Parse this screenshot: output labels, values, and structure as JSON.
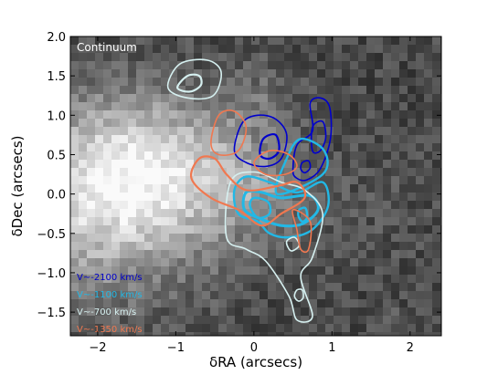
{
  "chart_data": {
    "type": "contour",
    "panel_label": "Continuum",
    "xlabel": "δRA (arcsecs)",
    "ylabel": "δDec (arcsecs)",
    "xlim": [
      -2.35,
      2.4
    ],
    "ylim": [
      -1.8,
      2.0
    ],
    "xticks": [
      -2,
      -1,
      0,
      1,
      2
    ],
    "xtick_labels": [
      "−2",
      "−1",
      "0",
      "1",
      "2"
    ],
    "yticks": [
      -1.5,
      -1.0,
      -0.5,
      0.0,
      0.5,
      1.0,
      1.5,
      2.0
    ],
    "ytick_labels": [
      "−1.5",
      "−1.0",
      "−0.5",
      "0.0",
      "0.5",
      "1.0",
      "1.5",
      "2.0"
    ],
    "background": "grayscale continuum image",
    "series": [
      {
        "name": "V~-2100 km/s",
        "color": "#0000cc",
        "contours": [
          [
            [
              -0.25,
              0.55
            ],
            [
              -0.15,
              0.9
            ],
            [
              0.05,
              1.0
            ],
            [
              0.28,
              0.95
            ],
            [
              0.42,
              0.75
            ],
            [
              0.35,
              0.45
            ],
            [
              0.15,
              0.35
            ],
            [
              -0.1,
              0.4
            ]
          ],
          [
            [
              0.08,
              0.5
            ],
            [
              0.12,
              0.7
            ],
            [
              0.28,
              0.75
            ],
            [
              0.32,
              0.55
            ],
            [
              0.2,
              0.45
            ]
          ],
          [
            [
              0.5,
              0.3
            ],
            [
              0.55,
              0.62
            ],
            [
              0.75,
              0.8
            ],
            [
              0.72,
              1.15
            ],
            [
              0.85,
              1.22
            ],
            [
              0.97,
              1.1
            ],
            [
              0.98,
              0.7
            ],
            [
              0.85,
              0.32
            ],
            [
              0.68,
              0.18
            ],
            [
              0.55,
              0.2
            ]
          ],
          [
            [
              0.75,
              0.55
            ],
            [
              0.75,
              0.85
            ],
            [
              0.88,
              0.92
            ],
            [
              0.92,
              0.72
            ],
            [
              0.85,
              0.55
            ]
          ],
          [
            [
              0.6,
              0.32
            ],
            [
              0.62,
              0.4
            ],
            [
              0.7,
              0.42
            ],
            [
              0.72,
              0.33
            ],
            [
              0.65,
              0.27
            ]
          ]
        ]
      },
      {
        "name": "V~-1100 km/s",
        "color": "#22b8e6",
        "contours": [
          [
            [
              -0.2,
              -0.25
            ],
            [
              -0.25,
              0.05
            ],
            [
              -0.1,
              0.22
            ],
            [
              0.2,
              0.15
            ],
            [
              0.55,
              0.02
            ],
            [
              0.88,
              0.15
            ],
            [
              0.95,
              -0.15
            ],
            [
              0.75,
              -0.45
            ],
            [
              0.45,
              -0.55
            ],
            [
              0.2,
              -0.5
            ],
            [
              0.05,
              -0.35
            ]
          ],
          [
            [
              -0.12,
              -0.2
            ],
            [
              -0.1,
              0.02
            ],
            [
              0.1,
              0.02
            ],
            [
              0.35,
              -0.05
            ],
            [
              0.72,
              -0.02
            ],
            [
              0.82,
              -0.2
            ],
            [
              0.62,
              -0.38
            ],
            [
              0.35,
              -0.4
            ],
            [
              0.1,
              -0.32
            ]
          ],
          [
            [
              -0.05,
              -0.15
            ],
            [
              0.0,
              -0.05
            ],
            [
              0.18,
              -0.1
            ],
            [
              0.2,
              -0.25
            ],
            [
              0.05,
              -0.3
            ]
          ],
          [
            [
              0.57,
              -0.28
            ],
            [
              0.58,
              -0.2
            ],
            [
              0.66,
              -0.18
            ],
            [
              0.68,
              -0.3
            ],
            [
              0.62,
              -0.35
            ]
          ],
          [
            [
              0.3,
              0.0
            ],
            [
              0.42,
              0.45
            ],
            [
              0.6,
              0.7
            ],
            [
              0.9,
              0.55
            ],
            [
              0.88,
              0.25
            ]
          ]
        ]
      },
      {
        "name": "V~-700 km/s",
        "color": "#d6f0f0",
        "contours": [
          [
            [
              -1.1,
              1.35
            ],
            [
              -0.95,
              1.65
            ],
            [
              -0.6,
              1.7
            ],
            [
              -0.42,
              1.55
            ],
            [
              -0.52,
              1.25
            ],
            [
              -0.85,
              1.22
            ]
          ],
          [
            [
              -0.98,
              1.35
            ],
            [
              -0.85,
              1.5
            ],
            [
              -0.7,
              1.5
            ],
            [
              -0.68,
              1.38
            ],
            [
              -0.82,
              1.3
            ]
          ],
          [
            [
              -0.35,
              -0.55
            ],
            [
              -0.3,
              0.15
            ],
            [
              0.0,
              0.28
            ],
            [
              0.35,
              0.15
            ],
            [
              0.65,
              0.05
            ],
            [
              0.88,
              -0.25
            ],
            [
              0.75,
              -0.8
            ],
            [
              0.6,
              -1.05
            ],
            [
              0.75,
              -1.55
            ],
            [
              0.55,
              -1.6
            ],
            [
              0.45,
              -1.3
            ],
            [
              0.15,
              -0.85
            ],
            [
              -0.1,
              -0.7
            ]
          ],
          [
            [
              0.45,
              -0.7
            ],
            [
              0.42,
              -0.6
            ],
            [
              0.52,
              -0.55
            ],
            [
              0.58,
              -0.65
            ],
            [
              0.5,
              -0.72
            ]
          ],
          [
            [
              0.52,
              -1.3
            ],
            [
              0.55,
              -1.22
            ],
            [
              0.62,
              -1.22
            ],
            [
              0.63,
              -1.32
            ],
            [
              0.57,
              -1.36
            ]
          ]
        ]
      },
      {
        "name": "V~-1350 km/s",
        "color": "#f07850",
        "contours": [
          [
            [
              -0.55,
              0.65
            ],
            [
              -0.45,
              1.0
            ],
            [
              -0.25,
              1.05
            ],
            [
              -0.1,
              0.85
            ],
            [
              -0.2,
              0.55
            ],
            [
              -0.45,
              0.5
            ]
          ],
          [
            [
              -0.8,
              0.2
            ],
            [
              -0.7,
              0.45
            ],
            [
              -0.5,
              0.45
            ],
            [
              -0.35,
              0.25
            ],
            [
              -0.1,
              0.05
            ],
            [
              0.3,
              0.1
            ],
            [
              0.55,
              0.15
            ],
            [
              0.65,
              -0.05
            ],
            [
              0.35,
              -0.25
            ],
            [
              0.1,
              -0.4
            ],
            [
              -0.2,
              -0.2
            ],
            [
              -0.55,
              -0.05
            ]
          ],
          [
            [
              0.0,
              0.4
            ],
            [
              0.2,
              0.55
            ],
            [
              0.45,
              0.5
            ],
            [
              0.55,
              0.35
            ],
            [
              0.4,
              0.25
            ],
            [
              0.15,
              0.25
            ]
          ],
          [
            [
              0.5,
              -0.2
            ],
            [
              0.55,
              -0.45
            ],
            [
              0.6,
              -0.7
            ],
            [
              0.7,
              -0.7
            ],
            [
              0.72,
              -0.35
            ]
          ]
        ]
      }
    ],
    "legend_placement": "lower-left"
  }
}
